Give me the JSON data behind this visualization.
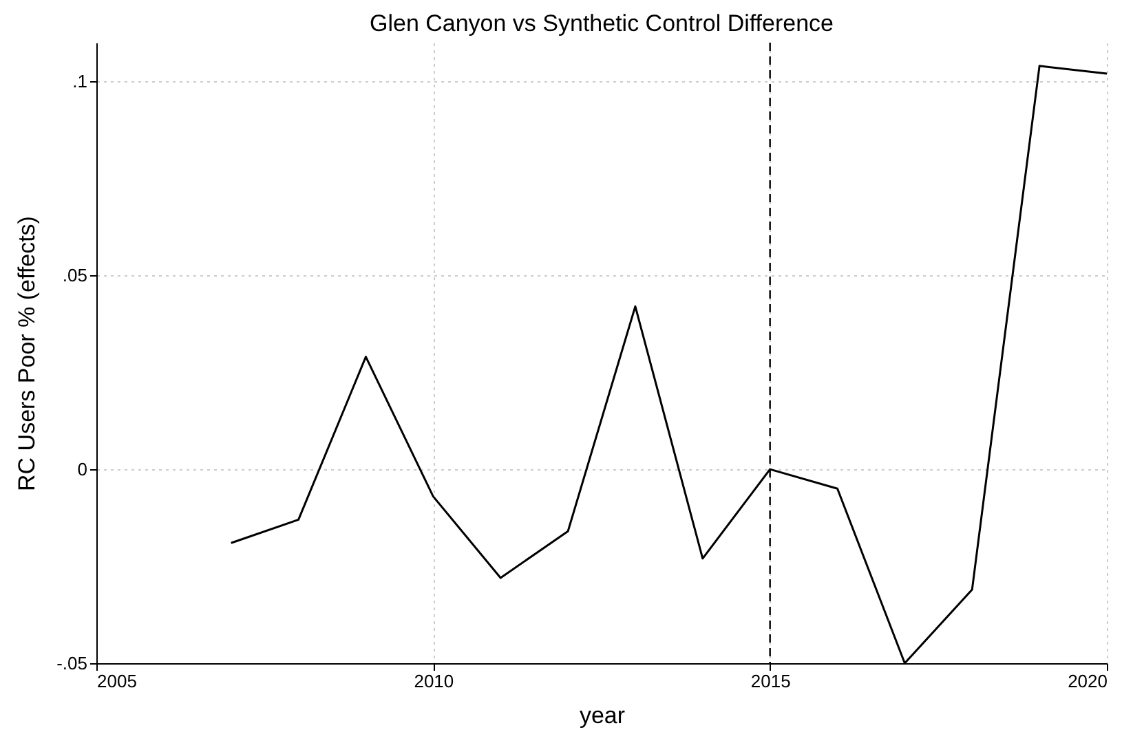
{
  "chart_data": {
    "type": "line",
    "title": "Glen Canyon vs Synthetic Control Difference",
    "xlabel": "year",
    "ylabel": "RC Users Poor % (effects)",
    "x": [
      2007,
      2008,
      2009,
      2010,
      2011,
      2012,
      2013,
      2014,
      2015,
      2016,
      2017,
      2018,
      2019,
      2020
    ],
    "series": [
      {
        "color": "#000000",
        "values": [
          -0.019,
          -0.013,
          0.029,
          -0.007,
          -0.028,
          -0.016,
          0.042,
          -0.023,
          0,
          -0.005,
          -0.05,
          -0.031,
          0.104,
          0.102
        ]
      }
    ],
    "xlim": [
      2005,
      2020
    ],
    "xticks": [
      2005,
      2010,
      2015,
      2020
    ],
    "ylim": [
      -0.05,
      0.11
    ],
    "yticks": [
      {
        "value": -0.05,
        "label": "-.05"
      },
      {
        "value": 0,
        "label": "0"
      },
      {
        "value": 0.05,
        "label": ".05"
      },
      {
        "value": 0.1,
        "label": ".1"
      }
    ],
    "grid": true,
    "line_style": "solid",
    "ref_lines": [
      {
        "axis": "x",
        "value": 2015,
        "color": "#000000",
        "line_style": "dashed"
      }
    ]
  }
}
